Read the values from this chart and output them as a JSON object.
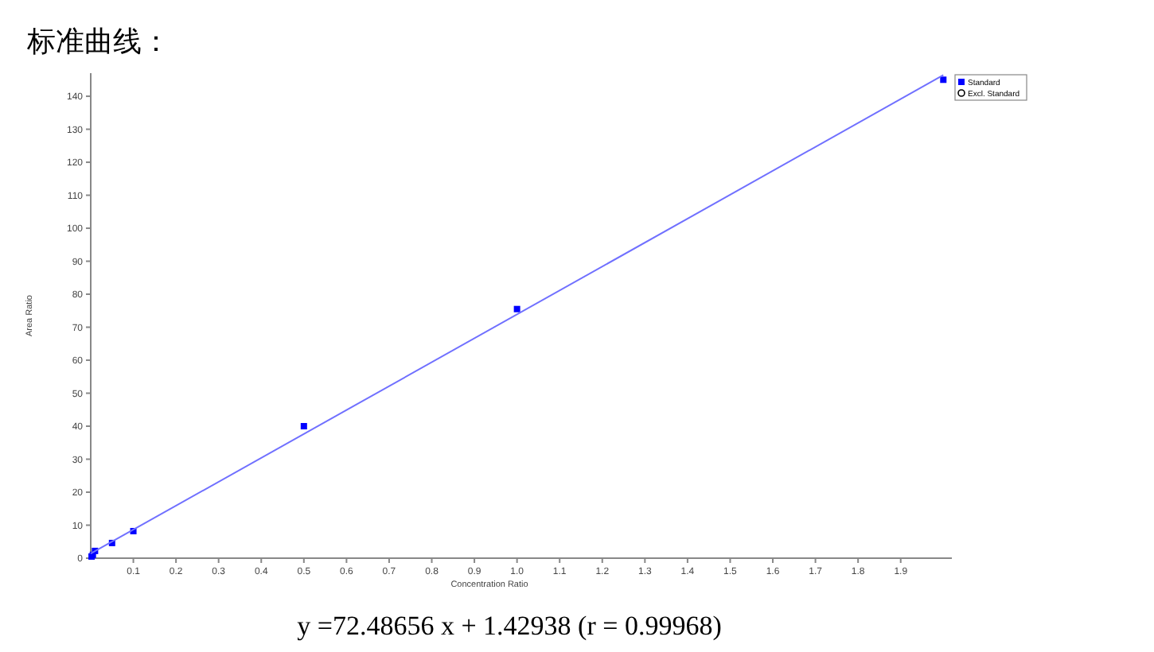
{
  "chart_data": {
    "type": "scatter",
    "title": "标准曲线：",
    "xlabel": "Concentration Ratio",
    "ylabel": "Area Ratio",
    "xlim": [
      0,
      2.02
    ],
    "ylim": [
      0,
      147
    ],
    "xticks": [
      0.1,
      0.2,
      0.3,
      0.4,
      0.5,
      0.6,
      0.7,
      0.8,
      0.9,
      {
        "value": 1,
        "label": "1.0"
      },
      1.1,
      1.2,
      1.3,
      1.4,
      1.5,
      1.6,
      1.7,
      1.8,
      1.9
    ],
    "yticks": [
      0,
      10,
      20,
      30,
      40,
      50,
      60,
      70,
      80,
      90,
      100,
      110,
      120,
      130,
      140
    ],
    "grid": false,
    "legend": "top right",
    "series": [
      {
        "name": "Standard",
        "type": "scatter",
        "marker": "square",
        "color": "#0000ff",
        "x": [
          0.002,
          0.005,
          0.01,
          0.05,
          0.1,
          0.5,
          1.0,
          2.0
        ],
        "values": [
          0.5,
          1.0,
          2.2,
          4.6,
          8.2,
          40,
          75.5,
          145
        ]
      },
      {
        "name": "Excl. Standard",
        "type": "scatter",
        "marker": "circle",
        "color": "#000000"
      },
      {
        "type": "line",
        "color": "#7070ff",
        "x": [
          0,
          2.0
        ],
        "values": [
          1.4,
          146.4
        ]
      }
    ],
    "annotations": [
      "y =72.48656 x + 1.42938 (r = 0.99968)"
    ]
  }
}
